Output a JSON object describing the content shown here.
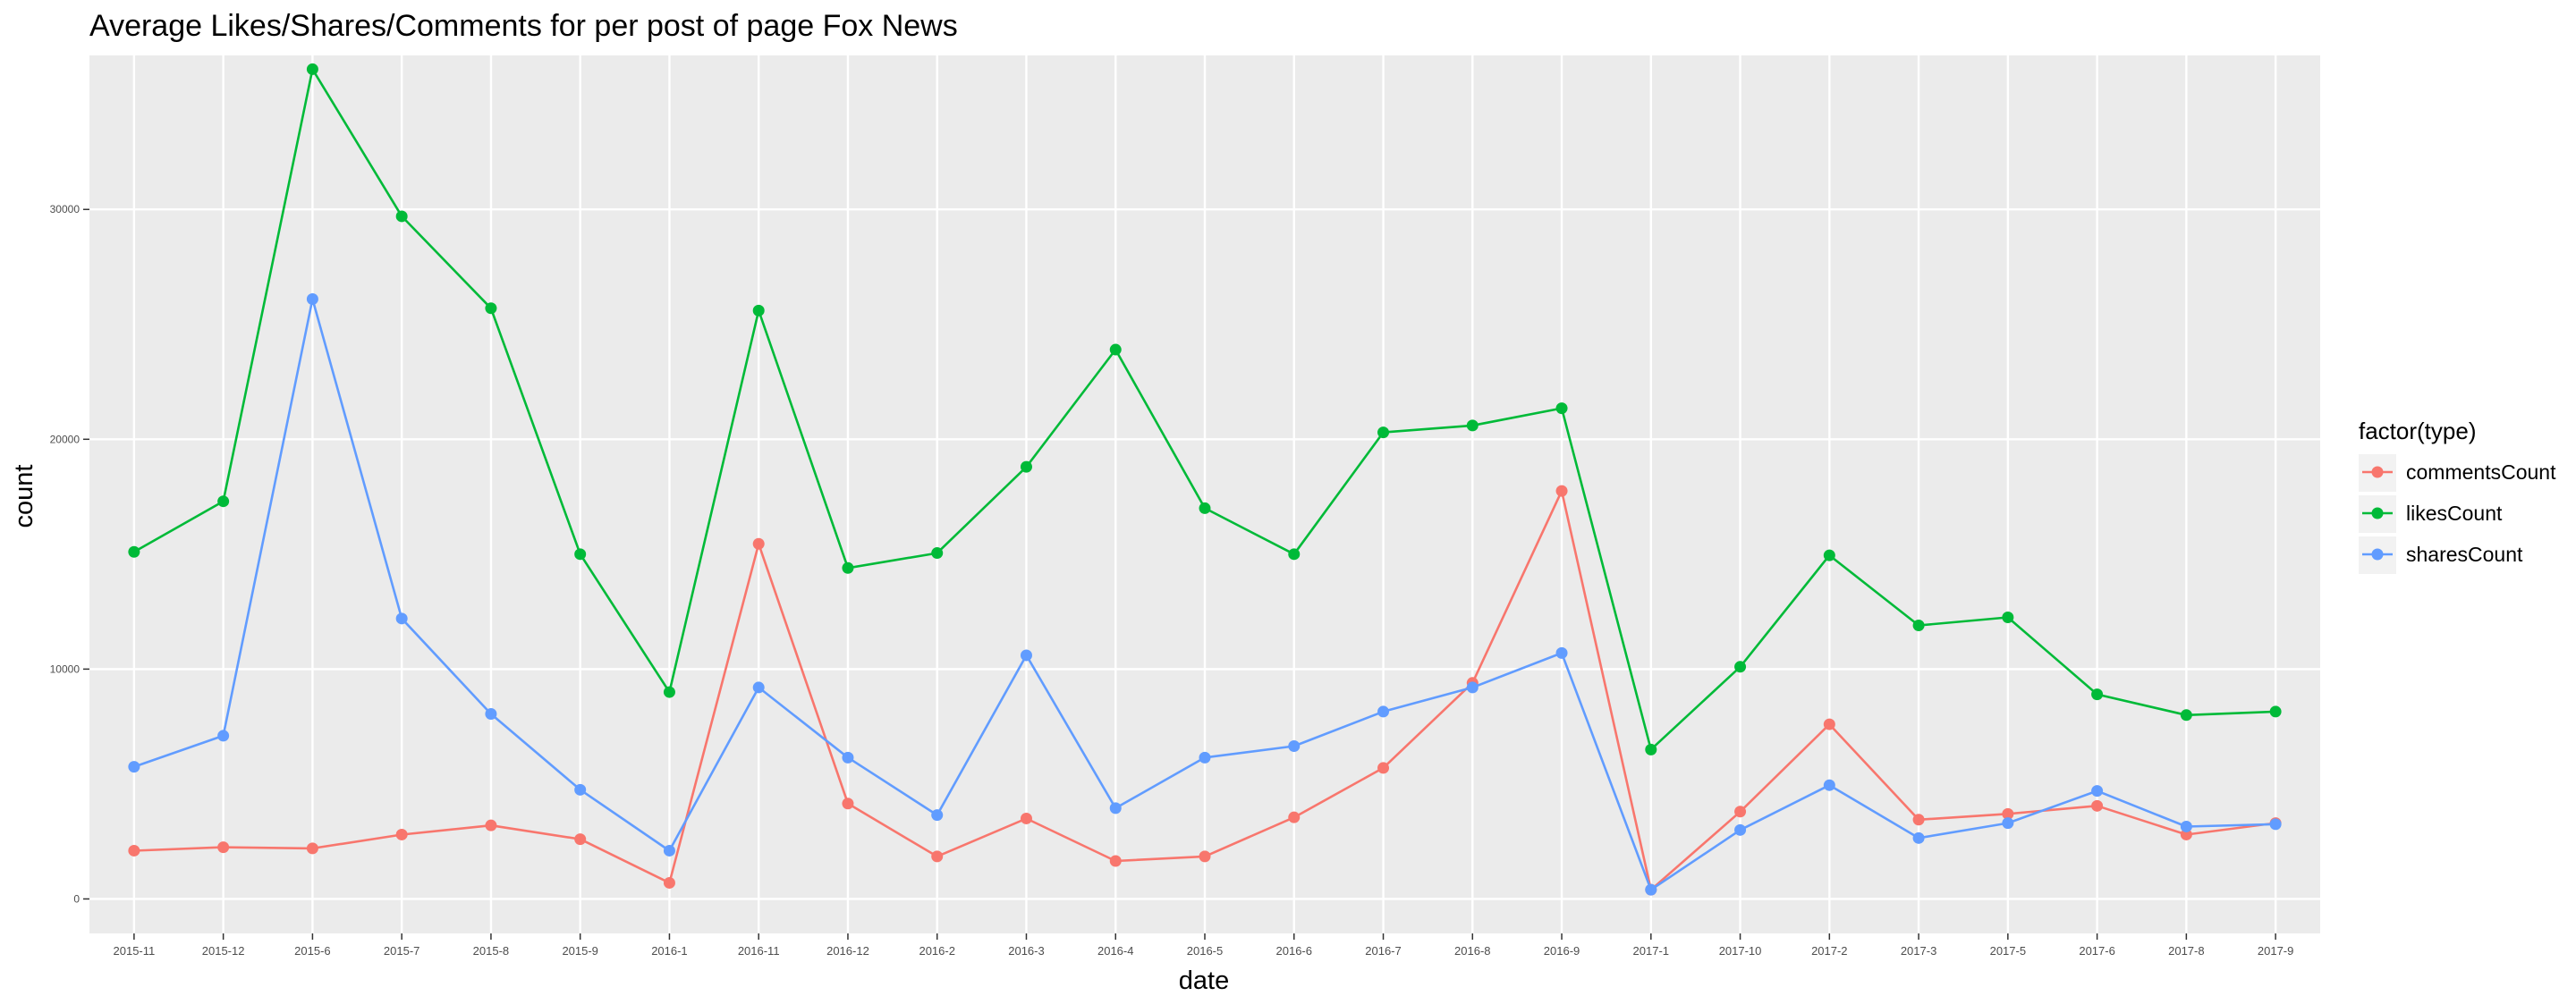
{
  "chart_data": {
    "type": "line",
    "title": "Average Likes/Shares/Comments for per post of page Fox News",
    "xlabel": "date",
    "ylabel": "count",
    "legend_title": "factor(type)",
    "legend_position": "right",
    "grid": true,
    "ylim": [
      -1500,
      36700
    ],
    "yticks": [
      0,
      10000,
      20000,
      30000
    ],
    "categories": [
      "2015-11",
      "2015-12",
      "2015-6",
      "2015-7",
      "2015-8",
      "2015-9",
      "2016-1",
      "2016-11",
      "2016-12",
      "2016-2",
      "2016-3",
      "2016-4",
      "2016-5",
      "2016-6",
      "2016-7",
      "2016-8",
      "2016-9",
      "2017-1",
      "2017-10",
      "2017-2",
      "2017-3",
      "2017-5",
      "2017-6",
      "2017-8",
      "2017-9"
    ],
    "series": [
      {
        "name": "commentsCount",
        "color": "#F8766D",
        "values": [
          2100,
          2250,
          2200,
          2800,
          3200,
          2600,
          700,
          15450,
          4150,
          1850,
          3500,
          1650,
          1850,
          3550,
          5700,
          9400,
          17750,
          400,
          3800,
          7600,
          3450,
          3700,
          4050,
          2800,
          3300
        ]
      },
      {
        "name": "likesCount",
        "color": "#00BA38",
        "values": [
          15100,
          17300,
          36100,
          29700,
          25700,
          15000,
          9000,
          25600,
          14400,
          15050,
          18800,
          23900,
          17000,
          15000,
          20300,
          20600,
          21350,
          6500,
          10100,
          14950,
          11900,
          12250,
          8900,
          8000,
          8150
        ]
      },
      {
        "name": "sharesCount",
        "color": "#619CFF",
        "values": [
          5750,
          7100,
          26100,
          12200,
          8050,
          4750,
          2100,
          9200,
          6150,
          3650,
          10600,
          3950,
          6150,
          6650,
          8150,
          9200,
          10700,
          400,
          3000,
          4950,
          2650,
          3300,
          4700,
          3150,
          3250
        ]
      }
    ]
  }
}
